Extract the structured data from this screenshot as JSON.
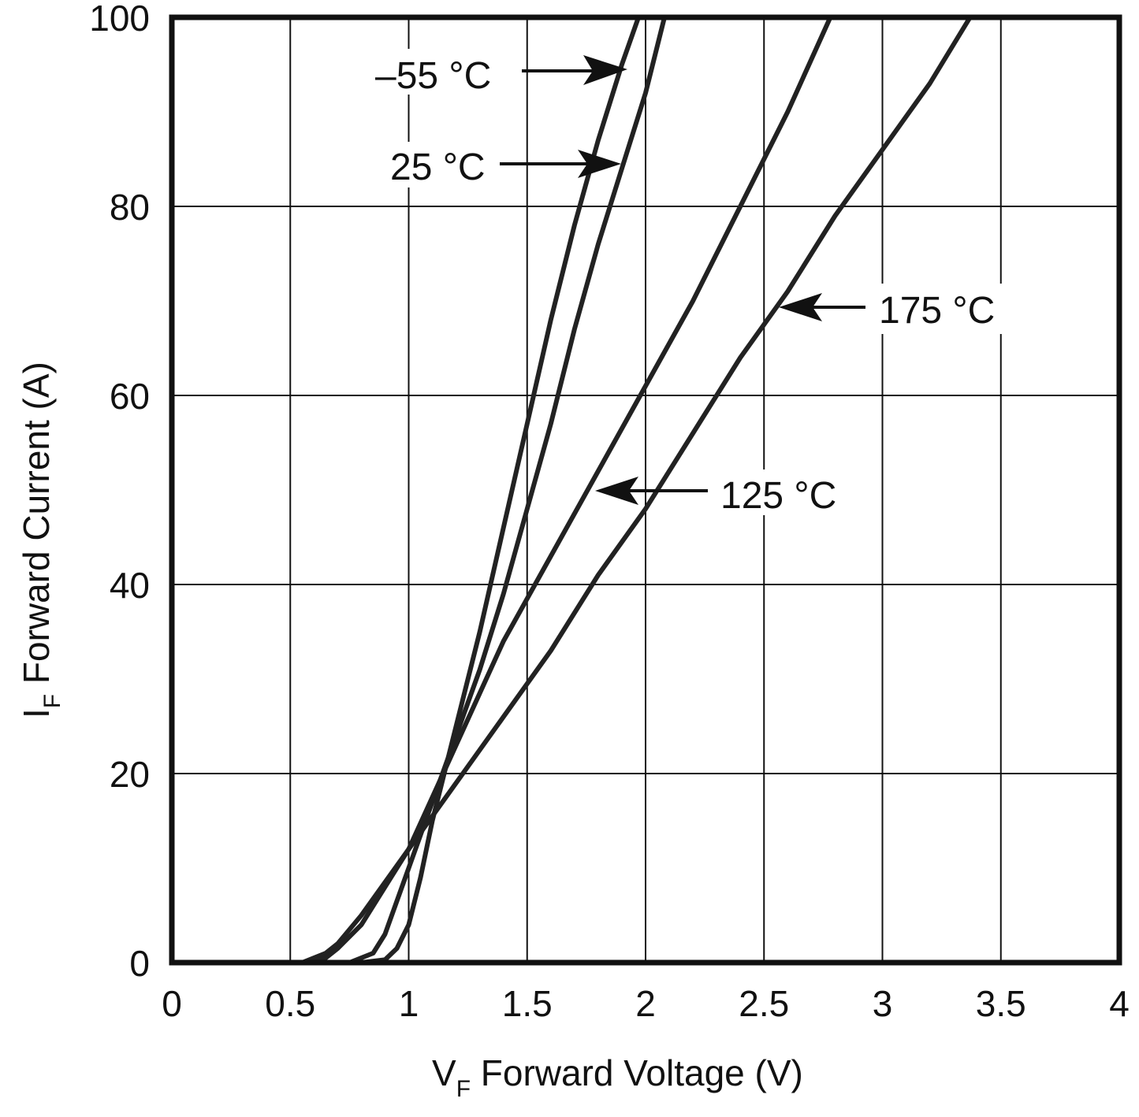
{
  "chart_data": {
    "type": "line",
    "title": "",
    "xlabel": {
      "main": "V",
      "sub": "F",
      "rest": " Forward Voltage (V)"
    },
    "ylabel": {
      "main": "I",
      "sub": "F",
      "rest": " Forward Current (A)"
    },
    "xlim": [
      0,
      4
    ],
    "ylim": [
      0,
      100
    ],
    "xticks": [
      0,
      0.5,
      1,
      1.5,
      2,
      2.5,
      3,
      3.5,
      4
    ],
    "xtick_labels": [
      "0",
      "0.5",
      "1",
      "1.5",
      "2",
      "2.5",
      "3",
      "3.5",
      "4"
    ],
    "yticks": [
      0,
      20,
      40,
      60,
      80,
      100
    ],
    "ytick_labels": [
      "0",
      "20",
      "40",
      "60",
      "80",
      "100"
    ],
    "grid": true,
    "series": [
      {
        "name": "-55 °C",
        "x": [
          0,
          0.5,
          0.8,
          0.9,
          0.95,
          1.0,
          1.05,
          1.1,
          1.2,
          1.3,
          1.4,
          1.5,
          1.6,
          1.7,
          1.8,
          1.9,
          1.97
        ],
        "y": [
          0,
          0,
          0,
          0.3,
          1.5,
          4,
          9,
          15,
          25,
          35,
          46,
          57,
          68,
          78,
          87,
          95,
          100
        ]
      },
      {
        "name": "25 °C",
        "x": [
          0,
          0.5,
          0.75,
          0.85,
          0.9,
          1.0,
          1.1,
          1.2,
          1.3,
          1.4,
          1.5,
          1.6,
          1.7,
          1.8,
          1.9,
          2.0,
          2.08
        ],
        "y": [
          0,
          0,
          0,
          1,
          3,
          10,
          17,
          24,
          31,
          39,
          48,
          57,
          67,
          76,
          84,
          92,
          100
        ]
      },
      {
        "name": "125 °C",
        "x": [
          0,
          0.55,
          0.65,
          0.7,
          0.8,
          0.9,
          1.0,
          1.2,
          1.4,
          1.6,
          1.8,
          2.0,
          2.2,
          2.4,
          2.6,
          2.78
        ],
        "y": [
          0,
          0,
          0.5,
          1.5,
          4,
          8,
          12,
          23,
          34,
          43,
          52,
          61,
          70,
          80,
          90,
          100
        ]
      },
      {
        "name": "175 °C",
        "x": [
          0,
          0.55,
          0.65,
          0.7,
          0.8,
          1.0,
          1.2,
          1.4,
          1.6,
          1.8,
          2.0,
          2.2,
          2.4,
          2.6,
          2.8,
          3.0,
          3.2,
          3.37
        ],
        "y": [
          0,
          0,
          1,
          2,
          5,
          12,
          19,
          26,
          33,
          41,
          48,
          56,
          64,
          71,
          79,
          86,
          93,
          100
        ]
      }
    ],
    "annotations": [
      {
        "text": "–55 °C",
        "points_to_series": "-55 °C"
      },
      {
        "text": "25 °C",
        "points_to_series": "25 °C"
      },
      {
        "text": "125 °C",
        "points_to_series": "125 °C"
      },
      {
        "text": "175 °C",
        "points_to_series": "175 °C"
      }
    ],
    "colors": {
      "line": "#222222",
      "grid": "#111111",
      "frame": "#111111"
    }
  }
}
